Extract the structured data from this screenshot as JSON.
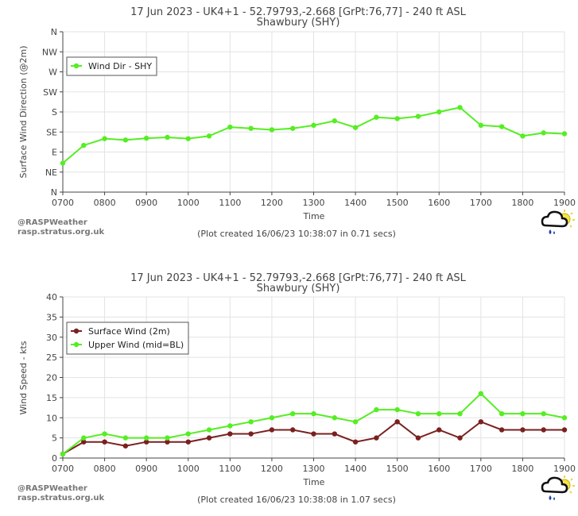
{
  "chart_data": [
    {
      "type": "line",
      "title": "17 Jun 2023 - UK4+1 - 52.79793,-2.668 [GrPt:76,77]  - 240 ft ASL",
      "subtitle": "Shawbury (SHY)",
      "xlabel": "Time",
      "ylabel": "Surface Wind Direction (@2m)",
      "x_ticks": [
        "0700",
        "0800",
        "0900",
        "1000",
        "1100",
        "1200",
        "1300",
        "1400",
        "1500",
        "1600",
        "1700",
        "1800",
        "1900"
      ],
      "y_ticks": [
        "N",
        "NE",
        "E",
        "SE",
        "S",
        "SW",
        "W",
        "NW",
        "N"
      ],
      "ylim": [
        0,
        360
      ],
      "xlim": [
        7,
        19
      ],
      "grid": true,
      "legend_position": "top-left",
      "x": [
        7.0,
        7.5,
        8.0,
        8.5,
        9.0,
        9.5,
        10.0,
        10.5,
        11.0,
        11.5,
        12.0,
        12.5,
        13.0,
        13.5,
        14.0,
        14.5,
        15.0,
        15.5,
        16.0,
        16.5,
        17.0,
        17.5,
        18.0,
        18.5,
        19.0
      ],
      "series": [
        {
          "name": "Wind Dir - SHY",
          "color": "#55ee22",
          "values": [
            65,
            105,
            120,
            117,
            121,
            123,
            120,
            126,
            146,
            143,
            140,
            143,
            150,
            160,
            145,
            168,
            165,
            170,
            180,
            190,
            150,
            147,
            126,
            133,
            131
          ]
        }
      ],
      "credit1": "@RASPWeather",
      "credit2": "rasp.stratus.org.uk",
      "created": "(Plot created 16/06/23 10:38:07 in 0.71 secs)"
    },
    {
      "type": "line",
      "title": "17 Jun 2023 - UK4+1 - 52.79793,-2.668 [GrPt:76,77]  - 240 ft ASL",
      "subtitle": "Shawbury (SHY)",
      "xlabel": "Time",
      "ylabel": "Wind Speed - kts",
      "x_ticks": [
        "0700",
        "0800",
        "0900",
        "1000",
        "1100",
        "1200",
        "1300",
        "1400",
        "1500",
        "1600",
        "1700",
        "1800",
        "1900"
      ],
      "y_ticks": [
        "0",
        "5",
        "10",
        "15",
        "20",
        "25",
        "30",
        "35",
        "40"
      ],
      "ylim": [
        0,
        40
      ],
      "xlim": [
        7,
        19
      ],
      "grid": true,
      "legend_position": "top-left",
      "x": [
        7.0,
        7.5,
        8.0,
        8.5,
        9.0,
        9.5,
        10.0,
        10.5,
        11.0,
        11.5,
        12.0,
        12.5,
        13.0,
        13.5,
        14.0,
        14.5,
        15.0,
        15.5,
        16.0,
        16.5,
        17.0,
        17.5,
        18.0,
        18.5,
        19.0
      ],
      "series": [
        {
          "name": "Surface Wind (2m)",
          "color": "#7a2020",
          "values": [
            1,
            4,
            4,
            3,
            4,
            4,
            4,
            5,
            6,
            6,
            7,
            7,
            6,
            6,
            4,
            5,
            9,
            5,
            7,
            5,
            9,
            7,
            7,
            7,
            7
          ]
        },
        {
          "name": "Upper Wind (mid=BL)",
          "color": "#55ee22",
          "values": [
            1,
            5,
            6,
            5,
            5,
            5,
            6,
            7,
            8,
            9,
            10,
            11,
            11,
            10,
            9,
            12,
            12,
            11,
            11,
            11,
            16,
            11,
            11,
            11,
            10
          ]
        }
      ],
      "credit1": "@RASPWeather",
      "credit2": "rasp.stratus.org.uk",
      "created": "(Plot created 16/06/23 10:38:08 in 1.07 secs)"
    }
  ]
}
